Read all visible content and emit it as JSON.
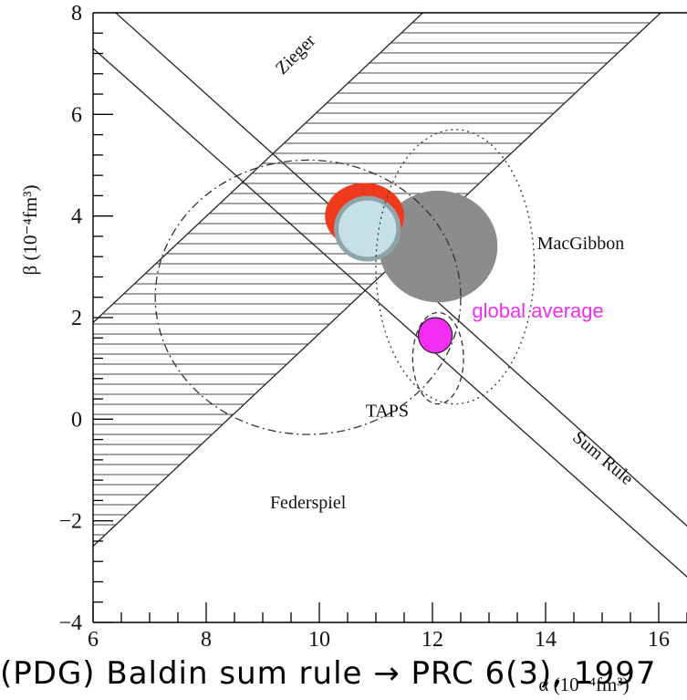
{
  "chart_data": {
    "type": "scatter",
    "title": "",
    "xlabel": "α (10⁻⁴fm³)",
    "ylabel": "β (10⁻⁴fm³)",
    "xlim": [
      6,
      16.8
    ],
    "ylim": [
      -4,
      8
    ],
    "xticks": [
      6,
      8,
      10,
      12,
      14,
      16
    ],
    "yticks": [
      -4,
      -2,
      0,
      2,
      4,
      6,
      8
    ],
    "grid": false,
    "bands": [
      {
        "label": "Zieger",
        "kind": "hatched",
        "lower": {
          "x1": 6,
          "y1": -2.5,
          "x2": 16.8,
          "y2": 8.8
        },
        "upper": {
          "x1": 6,
          "y1": 1.9,
          "x2": 16.8,
          "y2": 13.2
        }
      },
      {
        "label": "Sum Rule",
        "kind": "lines",
        "lower": {
          "x1": 6,
          "y1": 7.3,
          "x2": 16.8,
          "y2": -3.4
        },
        "upper": {
          "x1": 6,
          "y1": 8.4,
          "x2": 16.8,
          "y2": -2.4
        }
      }
    ],
    "regions": [
      {
        "label": "Federspiel",
        "style": "dash-dot",
        "cx": 9.8,
        "cy": 2.4,
        "rx": 2.7,
        "ry": 2.7
      },
      {
        "label": "MacGibbon",
        "style": "dotted",
        "cx": 12.4,
        "cy": 3.0,
        "rx": 1.4,
        "ry": 2.7
      },
      {
        "label": "TAPS",
        "style": "dashed",
        "cx": 12.1,
        "cy": 1.2,
        "rx": 0.45,
        "ry": 0.9
      }
    ],
    "fills": [
      {
        "name": "grey",
        "color": "#8c8c8c",
        "cx": 12.1,
        "cy": 3.4,
        "rx": 1.05,
        "ry": 1.1
      },
      {
        "name": "red",
        "color": "#f03a1e",
        "cx": 10.8,
        "cy": 4.0,
        "rx": 0.7,
        "ry": 0.65
      },
      {
        "name": "light-blue",
        "color": "#c5e0e6",
        "cx": 10.85,
        "cy": 3.75,
        "rx": 0.55,
        "ry": 0.6
      },
      {
        "name": "global average",
        "color": "#f22ef2",
        "cx": 12.05,
        "cy": 1.65,
        "rx": 0.3,
        "ry": 0.35
      }
    ],
    "annotations": [
      {
        "text": "Zieger",
        "x": 9.65,
        "y": 7.1
      },
      {
        "text": "MacGibbon",
        "x": 13.85,
        "y": 3.35
      },
      {
        "text": "global average",
        "x": 12.7,
        "y": 2.0
      },
      {
        "text": "TAPS",
        "x": 11.2,
        "y": 0.05
      },
      {
        "text": "Sum Rule",
        "x": 14.95,
        "y": -0.85
      },
      {
        "text": "Federspiel",
        "x": 9.8,
        "y": -1.75
      }
    ]
  },
  "footer": {
    "text": "(PDG) Baldin sum rule → PRC 6(3), 1997"
  },
  "colors": {
    "grey": "#8c8c8c",
    "red": "#f03a1e",
    "light_blue": "#c5e0e6",
    "magenta": "#f22ef2"
  }
}
